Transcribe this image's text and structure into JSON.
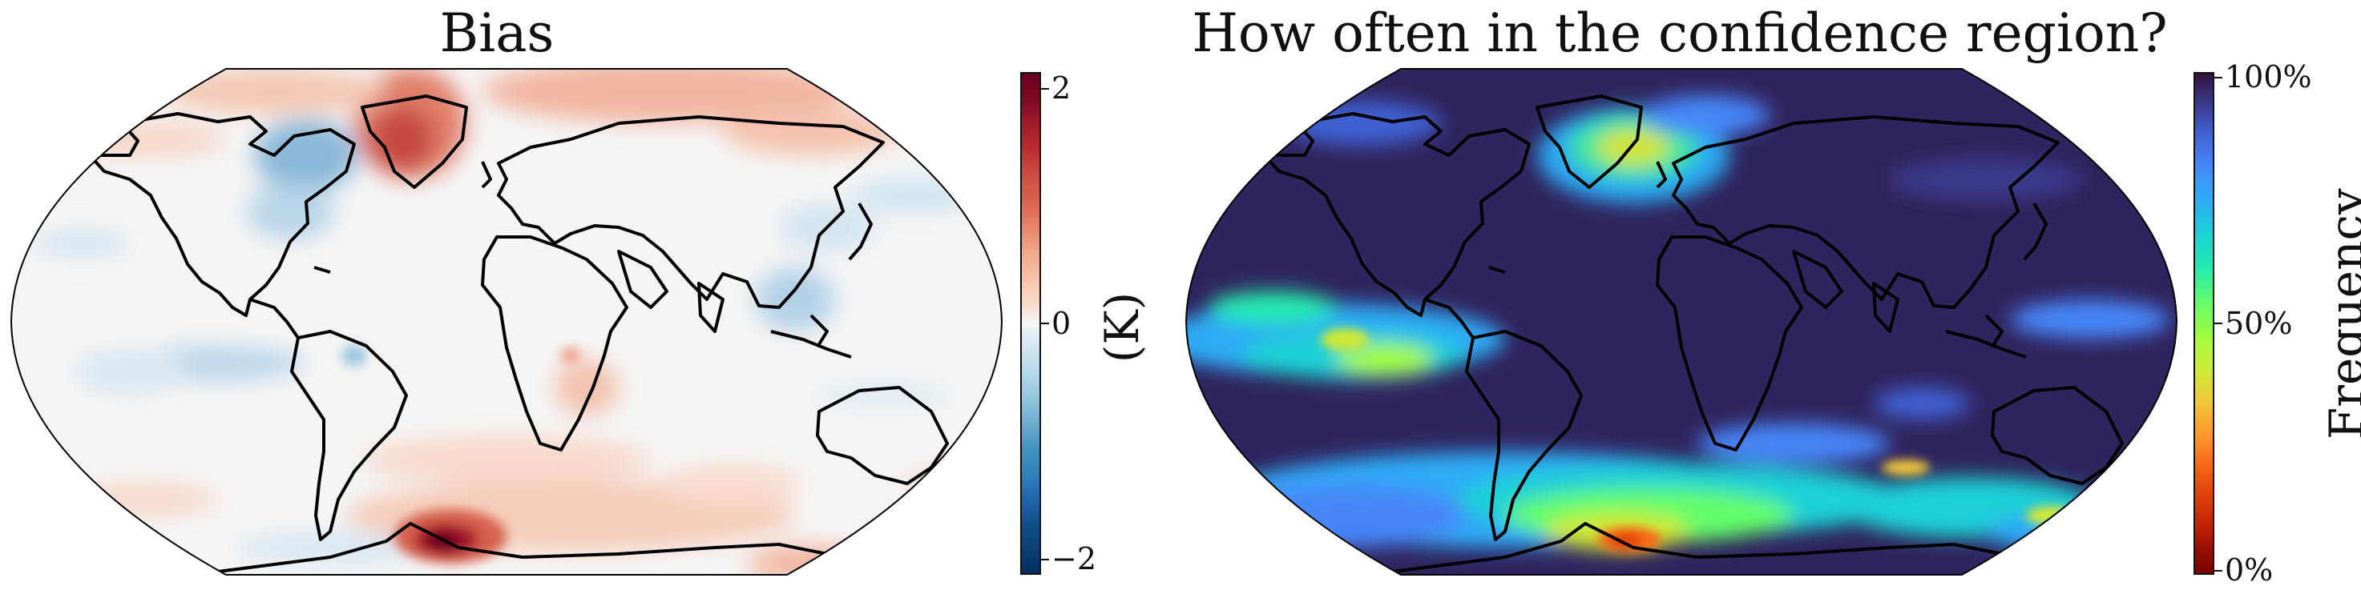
{
  "left_panel": {
    "title": "Bias",
    "colorbar": {
      "ticks": [
        "2",
        "0",
        "−2"
      ],
      "unit_label": "(K)",
      "colormap": "RdBu_r",
      "range": [
        -2.2,
        2.2
      ]
    }
  },
  "right_panel": {
    "title": "How often in the confidence region?",
    "colorbar": {
      "ticks": [
        "100%",
        "50%",
        "0%"
      ],
      "label": "Frequency",
      "colormap": "turbo",
      "range": [
        0,
        100
      ]
    }
  },
  "map": {
    "projection": "Robinson",
    "coastlines": true,
    "colors": {
      "bias_background": "#f5f5f5",
      "frequency_background": "#30245e",
      "coastline": "#000000"
    }
  }
}
